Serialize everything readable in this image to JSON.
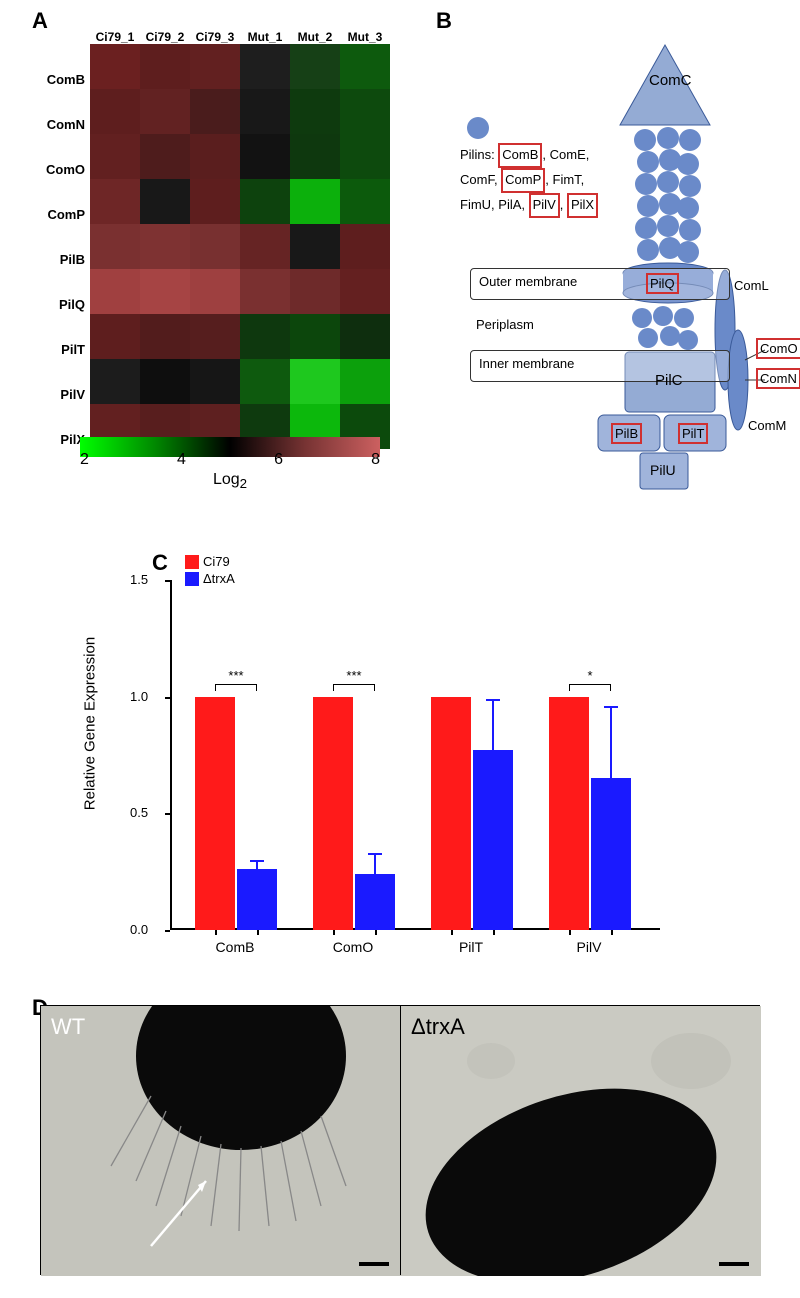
{
  "panelA": {
    "label": "A",
    "columns": [
      "Ci79_1",
      "Ci79_2",
      "Ci79_3",
      "Mut_1",
      "Mut_2",
      "Mut_3"
    ],
    "rows": [
      "ComB",
      "ComN",
      "ComO",
      "ComP",
      "PilB",
      "PilQ",
      "PilT",
      "PilV",
      "PilX"
    ],
    "colors": [
      [
        "#6b2020",
        "#5e1e1e",
        "#622020",
        "#1e1e1e",
        "#164016",
        "#0d5a0d"
      ],
      [
        "#5e1e1e",
        "#622222",
        "#4a1c1c",
        "#181818",
        "#0e3a0e",
        "#0d4a0d"
      ],
      [
        "#622020",
        "#4e1c1c",
        "#5a1e1e",
        "#121212",
        "#0e380e",
        "#0d4a0d"
      ],
      [
        "#6e2626",
        "#181818",
        "#5e1e1e",
        "#0d420d",
        "#0cb00c",
        "#0c5a0c"
      ],
      [
        "#7a3030",
        "#7e3232",
        "#783030",
        "#662424",
        "#181818",
        "#5e1e1e"
      ],
      [
        "#a04040",
        "#a64444",
        "#9e4040",
        "#7a3030",
        "#6e2a2a",
        "#642020"
      ],
      [
        "#5e1e1e",
        "#521c1c",
        "#561e1e",
        "#0e380e",
        "#0c460c",
        "#0e2e0e"
      ],
      [
        "#1c1c1c",
        "#0e0e0e",
        "#161616",
        "#0e5a0e",
        "#1ec81e",
        "#0ca00c"
      ],
      [
        "#622020",
        "#581e1e",
        "#5e2020",
        "#0e3a0e",
        "#0cb80c",
        "#0c4a0c"
      ]
    ],
    "scale": {
      "ticks": [
        "2",
        "4",
        "6",
        "8"
      ],
      "label": "Log",
      "sub": "2",
      "gradient": "linear-gradient(to right, #00ff00, #008800, #000000, #773333, #cc6060)"
    }
  },
  "panelB": {
    "label": "B",
    "pilinsLines": [
      "Pilins: <span class='red-box'>ComB</span>, ComE,",
      "ComF, <span class='red-box'>ComP</span>, FimT,",
      "FimU, PilA, <span class='red-box'>PilV</span>, <span class='red-box'>PilX</span>"
    ],
    "labels": {
      "ComC": "ComC",
      "Outer": "Outer membrane",
      "PilQ": "PilQ",
      "Periplasm": "Periplasm",
      "Inner": "Inner membrane",
      "PilC": "PilC",
      "PilB": "PilB",
      "PilT": "PilT",
      "PilU": "PilU",
      "ComL": "ComL",
      "ComO": "ComO",
      "ComN": "ComN",
      "ComM": "ComM"
    },
    "colors": {
      "fill": "#6a8ac9",
      "stroke": "#3a5a99",
      "light": "#a0b4db"
    }
  },
  "panelC": {
    "label": "C",
    "yLabel": "Relative Gene Expression",
    "legend": [
      {
        "label": "Ci79",
        "color": "#ff1a1a"
      },
      {
        "label": "ΔtrxA",
        "color": "#1a1aff"
      }
    ],
    "yTicks": [
      "0.0",
      "0.5",
      "1.0",
      "1.5"
    ],
    "yMax": 1.5,
    "groups": [
      {
        "label": "ComB",
        "red": 1.0,
        "blue": 0.26,
        "blueErr": 0.03,
        "sig": "***"
      },
      {
        "label": "ComO",
        "red": 1.0,
        "blue": 0.24,
        "blueErr": 0.08,
        "sig": "***"
      },
      {
        "label": "PilT",
        "red": 1.0,
        "blue": 0.77,
        "blueErr": 0.21,
        "sig": ""
      },
      {
        "label": "PilV",
        "red": 1.0,
        "blue": 0.65,
        "blueErr": 0.3,
        "sig": "*"
      }
    ],
    "colors": {
      "red": "#ff1a1a",
      "blue": "#1a1aff"
    }
  },
  "panelD": {
    "label": "D",
    "images": [
      {
        "label": "WT",
        "hasPili": true
      },
      {
        "label": "ΔtrxA",
        "hasPili": false
      }
    ]
  }
}
